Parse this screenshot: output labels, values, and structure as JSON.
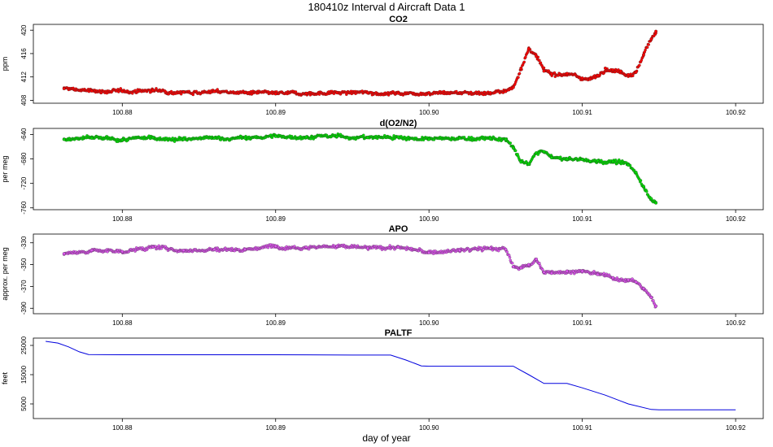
{
  "title": "180410z   Interval d Aircraft Data 1",
  "xlabel": "day of year",
  "chart_data": [
    {
      "type": "scatter",
      "title": "CO2",
      "ylabel": "ppm",
      "xlim": [
        100.8742,
        100.9218
      ],
      "ylim": [
        407.5,
        421.0
      ],
      "xticks": [
        "100.88",
        "100.89",
        "100.90",
        "100.91",
        "100.92"
      ],
      "xtick_values": [
        100.88,
        100.89,
        100.9,
        100.91,
        100.92
      ],
      "yticks": [
        "408",
        "412",
        "416",
        "420"
      ],
      "ytick_values": [
        408,
        412,
        416,
        420
      ],
      "color": "#ff0000",
      "series": [
        {
          "x": [
            100.8762,
            100.878,
            100.88,
            100.882,
            100.884,
            100.886,
            100.888,
            100.89,
            100.892,
            100.894,
            100.896,
            100.898,
            100.9,
            100.902,
            100.904,
            100.905,
            100.9055,
            100.906,
            100.9065,
            100.907,
            100.9075,
            100.908,
            100.909,
            100.91,
            100.9105,
            100.911,
            100.9115,
            100.912,
            100.9125,
            100.913,
            100.9135,
            100.914,
            100.9145,
            100.9148
          ],
          "y": [
            410.0,
            409.6,
            409.5,
            409.7,
            409.4,
            409.5,
            409.3,
            409.1,
            409.2,
            409.3,
            409.3,
            409.2,
            409.3,
            409.3,
            409.3,
            409.5,
            410.2,
            413.5,
            416.8,
            415.5,
            413.0,
            412.5,
            412.6,
            411.8,
            411.6,
            412.2,
            413.5,
            413.2,
            413.0,
            412.4,
            412.8,
            415.8,
            418.5,
            419.8
          ]
        }
      ]
    },
    {
      "type": "scatter",
      "title": "d(O2/N2)",
      "ylabel": "per meg",
      "xlim": [
        100.8742,
        100.9218
      ],
      "ylim": [
        -763,
        -630
      ],
      "xticks": [
        "100.88",
        "100.89",
        "100.90",
        "100.91",
        "100.92"
      ],
      "xtick_values": [
        100.88,
        100.89,
        100.9,
        100.91,
        100.92
      ],
      "yticks": [
        "-640",
        "-680",
        "-720",
        "-760"
      ],
      "ytick_values": [
        -640,
        -680,
        -720,
        -760
      ],
      "color": "#00dd00",
      "series": [
        {
          "x": [
            100.8762,
            100.878,
            100.88,
            100.882,
            100.884,
            100.886,
            100.888,
            100.89,
            100.892,
            100.894,
            100.896,
            100.898,
            100.9,
            100.902,
            100.904,
            100.905,
            100.9055,
            100.906,
            100.9065,
            100.907,
            100.9075,
            100.908,
            100.909,
            100.91,
            100.9105,
            100.911,
            100.912,
            100.913,
            100.9135,
            100.914,
            100.9145,
            100.9148
          ],
          "y": [
            -648,
            -646,
            -649,
            -645,
            -648,
            -646,
            -646,
            -643,
            -644,
            -643,
            -645,
            -644,
            -648,
            -646,
            -647,
            -648,
            -662,
            -685,
            -688,
            -670,
            -668,
            -678,
            -680,
            -681,
            -684,
            -683,
            -684,
            -690,
            -702,
            -725,
            -745,
            -752
          ]
        }
      ]
    },
    {
      "type": "scatter",
      "title": "APO",
      "ylabel": "approx. per meg",
      "xlim": [
        100.8742,
        100.9218
      ],
      "ylim": [
        -395,
        -322
      ],
      "xticks": [
        "100.88",
        "100.89",
        "100.90",
        "100.91",
        "100.92"
      ],
      "xtick_values": [
        100.88,
        100.89,
        100.9,
        100.91,
        100.92
      ],
      "yticks": [
        "-330",
        "-350",
        "-370",
        "-390"
      ],
      "ytick_values": [
        -330,
        -350,
        -370,
        -390
      ],
      "color": "#dd55ee",
      "series": [
        {
          "x": [
            100.8762,
            100.878,
            100.88,
            100.882,
            100.884,
            100.886,
            100.888,
            100.89,
            100.892,
            100.894,
            100.896,
            100.898,
            100.9,
            100.902,
            100.904,
            100.905,
            100.9055,
            100.906,
            100.9065,
            100.907,
            100.9075,
            100.908,
            100.909,
            100.91,
            100.911,
            100.912,
            100.913,
            100.9135,
            100.914,
            100.9145,
            100.9148
          ],
          "y": [
            -340,
            -337,
            -338,
            -334,
            -337,
            -336,
            -336,
            -333,
            -334,
            -333,
            -335,
            -334,
            -339,
            -337,
            -335,
            -336,
            -352,
            -353,
            -350,
            -345,
            -357,
            -358,
            -356,
            -356,
            -359,
            -362,
            -364,
            -366,
            -372,
            -380,
            -388
          ]
        }
      ]
    },
    {
      "type": "line",
      "title": "PALTF",
      "ylabel": "feet",
      "xlim": [
        100.8742,
        100.9218
      ],
      "ylim": [
        0,
        27500
      ],
      "xticks": [
        "100.88",
        "100.89",
        "100.90",
        "100.91",
        "100.92"
      ],
      "xtick_values": [
        100.88,
        100.89,
        100.9,
        100.91,
        100.92
      ],
      "yticks": [
        "5000",
        "15000",
        "25000"
      ],
      "ytick_values": [
        5000,
        15000,
        25000
      ],
      "color": "#0000dd",
      "series": [
        {
          "x": [
            100.875,
            100.8758,
            100.8765,
            100.8772,
            100.8778,
            100.88,
            100.885,
            100.89,
            100.895,
            100.8975,
            100.8985,
            100.8995,
            100.9,
            100.905,
            100.9055,
            100.9065,
            100.9075,
            100.909,
            100.91,
            100.9115,
            100.913,
            100.9145,
            100.915,
            100.92
          ],
          "y": [
            26400,
            25800,
            24500,
            22800,
            21900,
            21800,
            21800,
            21800,
            21700,
            21700,
            20000,
            18000,
            17900,
            17900,
            17900,
            15000,
            12000,
            12000,
            10500,
            8000,
            5000,
            3100,
            3000,
            3000
          ]
        }
      ]
    }
  ]
}
